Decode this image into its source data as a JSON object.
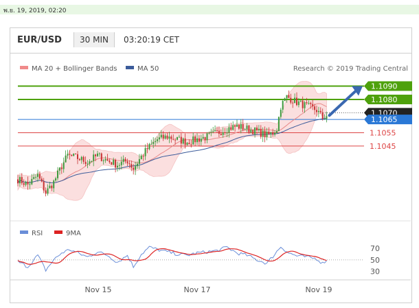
{
  "date_banner": "พ.ย. 19, 2019, 02:20",
  "header": {
    "symbol": "EUR/USD",
    "timeframe": "30 MIN",
    "time": "03:20:19 CET"
  },
  "legend": {
    "bb": "MA 20 + Bollinger Bands",
    "ma50": "MA 50",
    "rsi": "RSI",
    "ma9": "9MA"
  },
  "credit": "Research © 2019 Trading Central",
  "colors": {
    "green": "#4ea10c",
    "blue": "#2a78d6",
    "red": "#dd4444",
    "candle_up": "#3c9a3c",
    "candle_dn": "#c83232",
    "ma50": "#3b5b9a",
    "bb": "#f3b8b8",
    "arrow": "#3a68b0"
  },
  "chart_data": {
    "type": "candlestick",
    "x_labels": [
      "Nov 15",
      "Nov 17",
      "Nov 19"
    ],
    "levels": [
      {
        "label": "1.1090",
        "value": 1.109,
        "style": "resistance"
      },
      {
        "label": "1.1080",
        "value": 1.108,
        "style": "resistance"
      },
      {
        "label": "1.1070",
        "value": 1.107,
        "style": "current"
      },
      {
        "label": "1.1065",
        "value": 1.1065,
        "style": "pivot"
      },
      {
        "label": "1.1055",
        "value": 1.1055,
        "style": "support"
      },
      {
        "label": "1.1045",
        "value": 1.1045,
        "style": "support"
      }
    ],
    "ylim": [
      1.0995,
      1.1098
    ],
    "close_anchors": [
      [
        0,
        1.102
      ],
      [
        5,
        1.1016
      ],
      [
        10,
        1.1023
      ],
      [
        14,
        1.101
      ],
      [
        18,
        1.1018
      ],
      [
        22,
        1.103
      ],
      [
        25,
        1.1038
      ],
      [
        30,
        1.1036
      ],
      [
        35,
        1.1033
      ],
      [
        40,
        1.1038
      ],
      [
        45,
        1.1034
      ],
      [
        50,
        1.1031
      ],
      [
        55,
        1.1034
      ],
      [
        58,
        1.1028
      ],
      [
        61,
        1.1035
      ],
      [
        65,
        1.1043
      ],
      [
        70,
        1.105
      ],
      [
        75,
        1.1052
      ],
      [
        80,
        1.105
      ],
      [
        85,
        1.1048
      ],
      [
        90,
        1.105
      ],
      [
        95,
        1.1052
      ],
      [
        100,
        1.1055
      ],
      [
        105,
        1.1058
      ],
      [
        110,
        1.106
      ],
      [
        115,
        1.1058
      ],
      [
        120,
        1.1056
      ],
      [
        125,
        1.1053
      ],
      [
        128,
        1.1055
      ],
      [
        130,
        1.1058
      ],
      [
        132,
        1.1075
      ],
      [
        135,
        1.1082
      ],
      [
        140,
        1.1078
      ],
      [
        145,
        1.1075
      ],
      [
        150,
        1.1072
      ],
      [
        153,
        1.1066
      ],
      [
        155,
        1.1068
      ]
    ],
    "rsi": {
      "levels": [
        70,
        50,
        30
      ],
      "ylim": [
        20,
        82
      ],
      "anchors": [
        [
          0,
          47
        ],
        [
          5,
          38
        ],
        [
          10,
          58
        ],
        [
          14,
          32
        ],
        [
          18,
          50
        ],
        [
          22,
          62
        ],
        [
          26,
          68
        ],
        [
          30,
          62
        ],
        [
          35,
          55
        ],
        [
          40,
          64
        ],
        [
          45,
          58
        ],
        [
          50,
          46
        ],
        [
          55,
          58
        ],
        [
          58,
          38
        ],
        [
          62,
          60
        ],
        [
          66,
          72
        ],
        [
          70,
          68
        ],
        [
          75,
          64
        ],
        [
          80,
          60
        ],
        [
          85,
          58
        ],
        [
          90,
          62
        ],
        [
          95,
          64
        ],
        [
          100,
          66
        ],
        [
          105,
          72
        ],
        [
          110,
          62
        ],
        [
          115,
          58
        ],
        [
          120,
          50
        ],
        [
          125,
          44
        ],
        [
          128,
          56
        ],
        [
          132,
          73
        ],
        [
          136,
          62
        ],
        [
          140,
          57
        ],
        [
          145,
          55
        ],
        [
          150,
          52
        ],
        [
          153,
          44
        ],
        [
          155,
          50
        ]
      ]
    }
  }
}
